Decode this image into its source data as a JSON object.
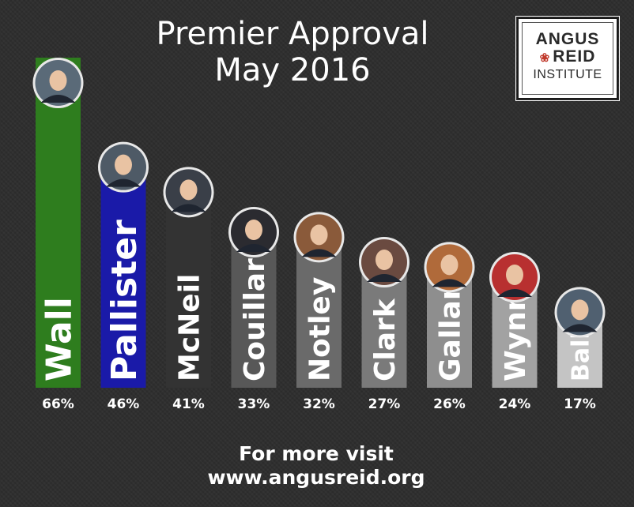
{
  "header": {
    "title_line1": "Premier Approval",
    "title_line2": "May 2016"
  },
  "logo": {
    "line1": "ANGUS",
    "line2": "REID",
    "line3": "INSTITUTE"
  },
  "footer": {
    "line1": "For more visit",
    "line2": "www.angusreid.org"
  },
  "chart_data": {
    "type": "bar",
    "title": "Premier Approval May 2016",
    "categories": [
      "Wall",
      "Pallister",
      "McNeil",
      "Couillard",
      "Notley",
      "Clark",
      "Gallant",
      "Wynne",
      "Ball"
    ],
    "values": [
      66,
      46,
      41,
      33,
      32,
      27,
      26,
      24,
      17
    ],
    "value_labels": [
      "66%",
      "46%",
      "41%",
      "33%",
      "32%",
      "27%",
      "26%",
      "24%",
      "17%"
    ],
    "bar_colors": [
      "#2e7d1e",
      "#1a1aa8",
      "#333333",
      "#585858",
      "#6a6a6a",
      "#7a7a7a",
      "#8e8e8e",
      "#a2a2a2",
      "#c4c4c4"
    ],
    "label_colors": [
      "#ffffff",
      "#ffffff",
      "#ffffff",
      "#ffffff",
      "#ffffff",
      "#ffffff",
      "#ffffff",
      "#ffffff",
      "#ffffff"
    ],
    "avatar_colors": [
      "#5a6a78",
      "#4e5a66",
      "#3a3f48",
      "#2b2b30",
      "#8a5a3a",
      "#6a4a40",
      "#b06a3a",
      "#b83030",
      "#506070"
    ],
    "ylim": [
      0,
      66
    ],
    "xlabel": "",
    "ylabel": ""
  }
}
